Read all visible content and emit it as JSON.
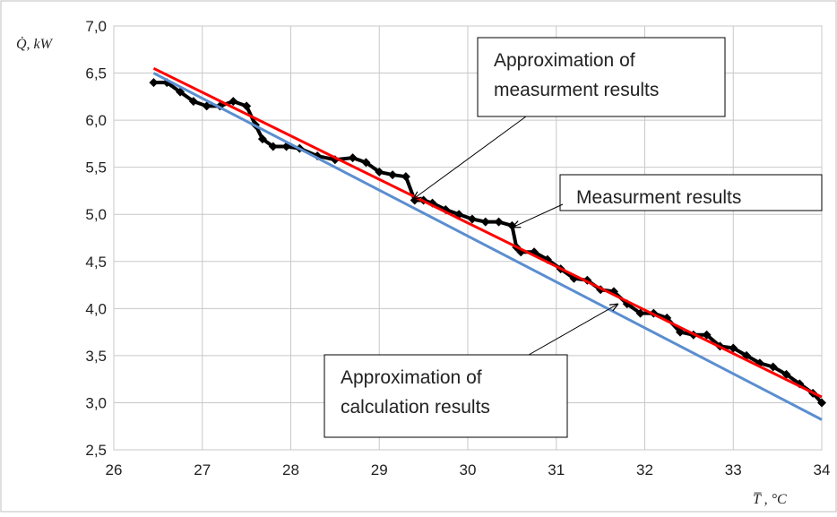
{
  "chart_data": {
    "type": "line",
    "title": "",
    "xlabel": "T̅ , °C",
    "ylabel": "Q̇, kW",
    "xlim": [
      26,
      34
    ],
    "ylim": [
      2.5,
      7.0
    ],
    "grid": true,
    "x_ticks": [
      "26",
      "27",
      "28",
      "29",
      "30",
      "31",
      "32",
      "33",
      "34"
    ],
    "y_ticks": [
      "2,5",
      "3,0",
      "3,5",
      "4,0",
      "4,5",
      "5,0",
      "5,5",
      "6,0",
      "6,5",
      "7,0"
    ],
    "series": [
      {
        "color": "#000000",
        "style": "markers",
        "x": [
          26.45,
          26.6,
          26.75,
          26.9,
          27.05,
          27.2,
          27.35,
          27.5,
          27.6,
          27.68,
          27.8,
          27.95,
          28.1,
          28.3,
          28.5,
          28.7,
          28.85,
          29.0,
          29.15,
          29.3,
          29.4,
          29.5,
          29.6,
          29.75,
          29.9,
          30.05,
          30.2,
          30.35,
          30.5,
          30.55,
          30.6,
          30.75,
          30.9,
          31.05,
          31.2,
          31.35,
          31.5,
          31.65,
          31.8,
          31.95,
          32.1,
          32.25,
          32.4,
          32.55,
          32.7,
          32.85,
          33.0,
          33.15,
          33.3,
          33.45,
          33.6,
          33.75,
          33.9,
          34.0
        ],
        "y": [
          6.4,
          6.4,
          6.3,
          6.2,
          6.15,
          6.15,
          6.2,
          6.15,
          5.95,
          5.8,
          5.72,
          5.72,
          5.7,
          5.62,
          5.58,
          5.6,
          5.55,
          5.45,
          5.42,
          5.4,
          5.15,
          5.15,
          5.12,
          5.05,
          5.0,
          4.95,
          4.92,
          4.92,
          4.88,
          4.65,
          4.6,
          4.6,
          4.52,
          4.42,
          4.32,
          4.3,
          4.2,
          4.18,
          4.05,
          3.95,
          3.95,
          3.9,
          3.75,
          3.72,
          3.72,
          3.6,
          3.58,
          3.5,
          3.42,
          3.38,
          3.3,
          3.2,
          3.1,
          3.0
        ]
      },
      {
        "color": "#ff0000",
        "style": "line",
        "x": [
          26.45,
          34.0
        ],
        "y": [
          6.55,
          3.06
        ]
      },
      {
        "color": "#5b8ed0",
        "style": "line",
        "x": [
          26.45,
          34.0
        ],
        "y": [
          6.5,
          2.82
        ]
      }
    ],
    "annotations": [
      {
        "lines": [
          "Approximation of",
          "measurment results"
        ],
        "target": [
          29.38,
          5.16
        ]
      },
      {
        "lines": [
          "Measurment results"
        ],
        "target": [
          30.5,
          4.86
        ]
      },
      {
        "lines": [
          "Approximation of",
          "calculation results"
        ],
        "target": [
          31.7,
          4.05
        ]
      }
    ]
  }
}
